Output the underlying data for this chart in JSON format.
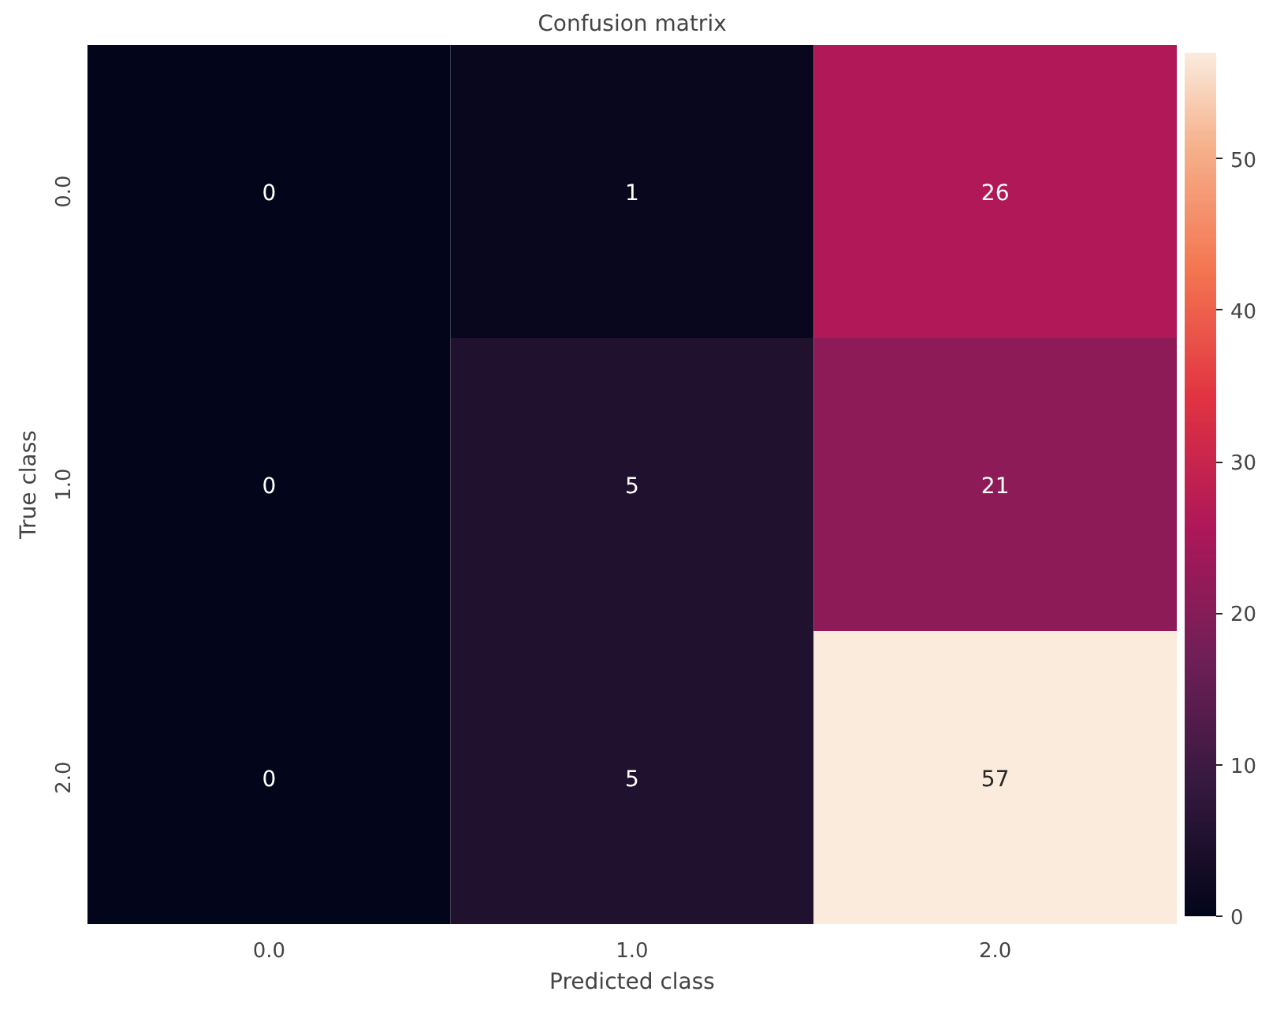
{
  "chart_data": {
    "type": "heatmap",
    "title": "Confusion matrix",
    "xlabel": "Predicted class",
    "ylabel": "True class",
    "categories": [
      "0.0",
      "1.0",
      "2.0"
    ],
    "y_categories": [
      "0.0",
      "1.0",
      "2.0"
    ],
    "cells": [
      [
        0,
        1,
        26
      ],
      [
        0,
        5,
        21
      ],
      [
        0,
        5,
        57
      ]
    ],
    "data_labels": true,
    "clim": [
      0,
      57
    ],
    "cticks": [
      0,
      10,
      20,
      30,
      40,
      50
    ],
    "grid": false
  }
}
